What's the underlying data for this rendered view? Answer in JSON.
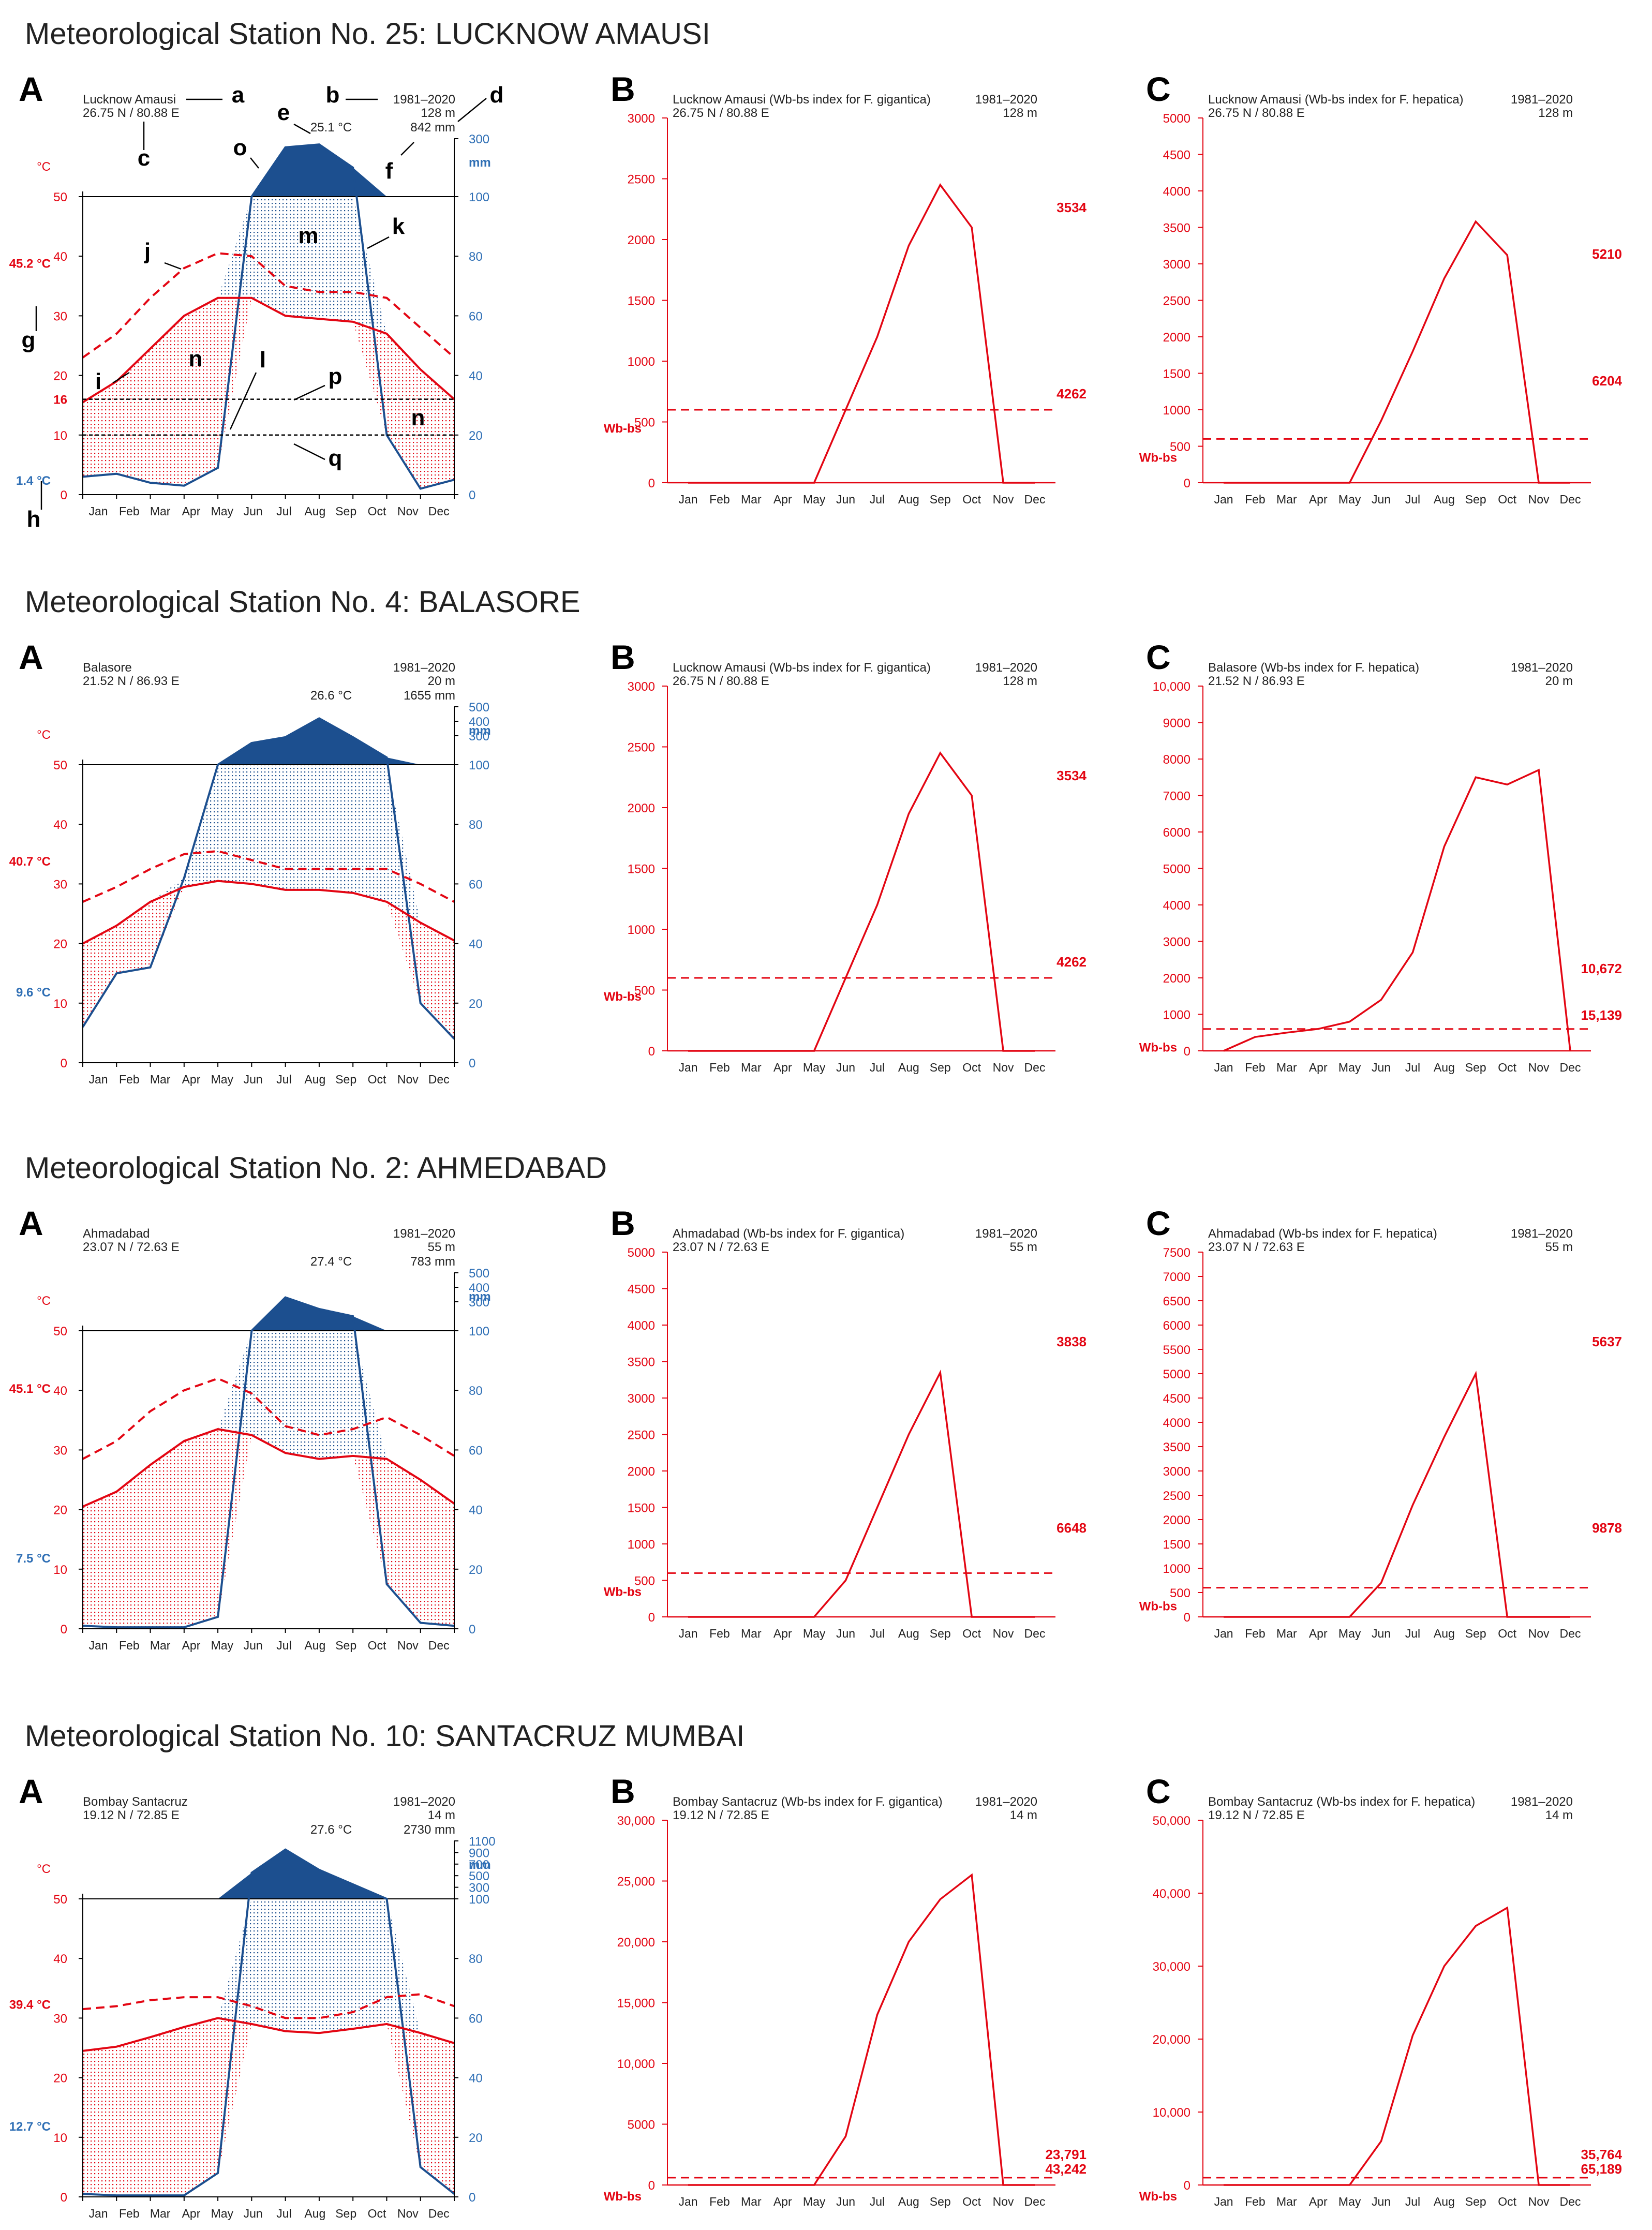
{
  "colors": {
    "temp": "#e30613",
    "prec": "#1c4f8f",
    "prec_label": "#2f6fb5",
    "axis": "#000000",
    "text": "#222222",
    "title": "#222222",
    "annot": "#000000"
  },
  "months": [
    "Jan",
    "Feb",
    "Mar",
    "Apr",
    "May",
    "Jun",
    "Jul",
    "Aug",
    "Sep",
    "Oct",
    "Nov",
    "Dec"
  ],
  "stations": [
    {
      "title": "Meteorological Station No. 25: LUCKNOW AMAUSI",
      "panels": {
        "A": {
          "letter": "A",
          "name": "Lucknow Amausi",
          "coords": "26.75 N / 80.88 E",
          "period": "1981–2020",
          "elevation": "128 m",
          "mean_temp": "25.1 °C",
          "annual_prec": "842 mm",
          "temp_unit": "°C",
          "prec_unit": "mm",
          "abs_max_label": "45.2 °C",
          "abs_min_label": "1.4 °C",
          "extra_temp_ticks": [
            "16"
          ],
          "ref_lines": [
            16,
            10
          ],
          "annotations": [
            "a",
            "b",
            "c",
            "d",
            "e",
            "f",
            "g",
            "h",
            "i",
            "j",
            "k",
            "l",
            "m",
            "n",
            "n",
            "o",
            "p",
            "q"
          ],
          "prec_ticks_high": [
            "300"
          ],
          "y_temp_ticks": [
            "0",
            "10",
            "20",
            "30",
            "40",
            "50"
          ],
          "y_prec_ticks": [
            "0",
            "20",
            "40",
            "60",
            "80",
            "100"
          ]
        },
        "B": {
          "letter": "B",
          "header": "Lucknow Amausi (Wb-bs index for F. gigantica)",
          "period": "1981–2020",
          "coords": "26.75 N / 80.88 E",
          "elevation": "128 m",
          "ylabel": "Wb-bs",
          "right_top": "3534",
          "right_bottom": "4262",
          "y_ticks": [
            "0",
            "500",
            "1000",
            "1500",
            "2000",
            "2500",
            "3000"
          ]
        },
        "C": {
          "letter": "C",
          "header": "Lucknow Amausi (Wb-bs index for F. hepatica)",
          "period": "1981–2020",
          "coords": "26.75 N / 80.88 E",
          "elevation": "128 m",
          "ylabel": "Wb-bs",
          "right_top": "5210",
          "right_bottom": "6204",
          "y_ticks": [
            "0",
            "500",
            "1000",
            "1500",
            "2000",
            "2500",
            "3000",
            "3500",
            "4000",
            "4500",
            "5000"
          ]
        }
      }
    },
    {
      "title": "Meteorological Station No. 4: BALASORE",
      "panels": {
        "A": {
          "letter": "A",
          "name": "Balasore",
          "coords": "21.52 N / 86.93 E",
          "period": "1981–2020",
          "elevation": "20 m",
          "mean_temp": "26.6 °C",
          "annual_prec": "1655 mm",
          "temp_unit": "°C",
          "prec_unit": "mm",
          "abs_max_label": "40.7 °C",
          "abs_min_label": "9.6 °C",
          "extra_temp_ticks": [],
          "ref_lines": [],
          "annotations": [],
          "prec_ticks_high": [
            "300",
            "400",
            "500"
          ],
          "y_temp_ticks": [
            "0",
            "10",
            "20",
            "30",
            "40",
            "50"
          ],
          "y_prec_ticks": [
            "0",
            "20",
            "40",
            "60",
            "80",
            "100"
          ]
        },
        "B": {
          "letter": "B",
          "header": "Lucknow Amausi (Wb-bs index for F. gigantica)",
          "period": "1981–2020",
          "coords": "26.75 N / 80.88 E",
          "elevation": "128 m",
          "ylabel": "Wb-bs",
          "right_top": "3534",
          "right_bottom": "4262",
          "y_ticks": [
            "0",
            "500",
            "1000",
            "1500",
            "2000",
            "2500",
            "3000"
          ]
        },
        "C": {
          "letter": "C",
          "header": "Balasore (Wb-bs index for F. hepatica)",
          "period": "1981–2020",
          "coords": "21.52 N / 86.93 E",
          "elevation": "20 m",
          "ylabel": "Wb-bs",
          "right_top": "10,672",
          "right_bottom": "15,139",
          "y_ticks": [
            "0",
            "1000",
            "2000",
            "3000",
            "4000",
            "5000",
            "6000",
            "7000",
            "8000",
            "9000",
            "10,000"
          ]
        }
      }
    },
    {
      "title": "Meteorological Station No. 2: AHMEDABAD",
      "panels": {
        "A": {
          "letter": "A",
          "name": "Ahmadabad",
          "coords": "23.07 N / 72.63 E",
          "period": "1981–2020",
          "elevation": "55 m",
          "mean_temp": "27.4 °C",
          "annual_prec": "783 mm",
          "temp_unit": "°C",
          "prec_unit": "mm",
          "abs_max_label": "45.1 °C",
          "abs_min_label": "7.5 °C",
          "extra_temp_ticks": [],
          "ref_lines": [],
          "annotations": [],
          "prec_ticks_high": [
            "300",
            "400",
            "500"
          ],
          "y_temp_ticks": [
            "0",
            "10",
            "20",
            "30",
            "40",
            "50"
          ],
          "y_prec_ticks": [
            "0",
            "20",
            "40",
            "60",
            "80",
            "100"
          ]
        },
        "B": {
          "letter": "B",
          "header": "Ahmadabad (Wb-bs index for F. gigantica)",
          "period": "1981–2020",
          "coords": "23.07 N / 72.63 E",
          "elevation": "55 m",
          "ylabel": "Wb-bs",
          "right_top": "3838",
          "right_bottom": "6648",
          "y_ticks": [
            "0",
            "500",
            "1000",
            "1500",
            "2000",
            "2500",
            "3000",
            "3500",
            "4000",
            "4500",
            "5000"
          ]
        },
        "C": {
          "letter": "C",
          "header": "Ahmadabad (Wb-bs index for F. hepatica)",
          "period": "1981–2020",
          "coords": "23.07 N / 72.63 E",
          "elevation": "55 m",
          "ylabel": "Wb-bs",
          "right_top": "5637",
          "right_bottom": "9878",
          "y_ticks": [
            "0",
            "500",
            "1000",
            "1500",
            "2000",
            "2500",
            "3000",
            "3500",
            "4000",
            "4500",
            "5000",
            "5500",
            "6000",
            "6500",
            "7000",
            "7500"
          ]
        }
      }
    },
    {
      "title": "Meteorological Station No. 10: SANTACRUZ MUMBAI",
      "panels": {
        "A": {
          "letter": "A",
          "name": "Bombay Santacruz",
          "coords": "19.12 N / 72.85 E",
          "period": "1981–2020",
          "elevation": "14 m",
          "mean_temp": "27.6 °C",
          "annual_prec": "2730 mm",
          "temp_unit": "°C",
          "prec_unit": "mm",
          "abs_max_label": "39.4 °C",
          "abs_min_label": "12.7 °C",
          "extra_temp_ticks": [],
          "ref_lines": [],
          "annotations": [],
          "prec_ticks_high": [
            "300",
            "500",
            "700",
            "900",
            "1100"
          ],
          "y_temp_ticks": [
            "0",
            "10",
            "20",
            "30",
            "40",
            "50"
          ],
          "y_prec_ticks": [
            "0",
            "20",
            "40",
            "60",
            "80",
            "100"
          ]
        },
        "B": {
          "letter": "B",
          "header": "Bombay Santacruz (Wb-bs index for F. gigantica)",
          "period": "1981–2020",
          "coords": "19.12 N / 72.85 E",
          "elevation": "14 m",
          "ylabel": "Wb-bs",
          "right_top": "23,791",
          "right_bottom": "43,242",
          "y_ticks": [
            "0",
            "5000",
            "10,000",
            "15,000",
            "20,000",
            "25,000",
            "30,000"
          ]
        },
        "C": {
          "letter": "C",
          "header": "Bombay Santacruz (Wb-bs index for F. hepatica)",
          "period": "1981–2020",
          "coords": "19.12 N / 72.85 E",
          "elevation": "14 m",
          "ylabel": "Wb-bs",
          "right_top": "35,764",
          "right_bottom": "65,189",
          "y_ticks": [
            "0",
            "10,000",
            "20,000",
            "30,000",
            "40,000",
            "50,000"
          ]
        }
      }
    }
  ],
  "chart_data": [
    {
      "type": "climate",
      "station": "Lucknow Amausi",
      "categories": [
        "Jan",
        "Feb",
        "Mar",
        "Apr",
        "May",
        "Jun",
        "Jul",
        "Aug",
        "Sep",
        "Oct",
        "Nov",
        "Dec"
      ],
      "series": [
        {
          "name": "mean temperature",
          "unit": "°C",
          "values": [
            15.5,
            19,
            24.5,
            30,
            33,
            33,
            30,
            29.5,
            29,
            27,
            21,
            16
          ]
        },
        {
          "name": "mean max temperature",
          "unit": "°C",
          "values": [
            23,
            27,
            33,
            38,
            40.5,
            40,
            35,
            34,
            34,
            33,
            28,
            23
          ]
        },
        {
          "name": "precipitation",
          "unit": "mm",
          "values": [
            6,
            7,
            4,
            3,
            9,
            100,
            270,
            280,
            200,
            20,
            2,
            5
          ]
        }
      ],
      "y_temp_range": [
        0,
        50
      ],
      "y_prec_range": [
        0,
        300
      ]
    },
    {
      "type": "line",
      "title": "Lucknow Amausi (Wb-bs index for F. gigantica)",
      "categories": [
        "Jan",
        "Feb",
        "Mar",
        "Apr",
        "May",
        "Jun",
        "Jul",
        "Aug",
        "Sep",
        "Oct",
        "Nov",
        "Dec"
      ],
      "values": [
        0,
        0,
        0,
        0,
        0,
        600,
        1200,
        1950,
        2450,
        2100,
        0,
        0
      ],
      "threshold": 600,
      "ylim": [
        0,
        3000
      ],
      "ylabel": "Wb-bs"
    },
    {
      "type": "line",
      "title": "Lucknow Amausi (Wb-bs index for F. hepatica)",
      "categories": [
        "Jan",
        "Feb",
        "Mar",
        "Apr",
        "May",
        "Jun",
        "Jul",
        "Aug",
        "Sep",
        "Oct",
        "Nov",
        "Dec"
      ],
      "values": [
        0,
        0,
        0,
        0,
        0,
        850,
        1800,
        2800,
        3580,
        3120,
        0,
        0
      ],
      "threshold": 600,
      "ylim": [
        0,
        5000
      ],
      "ylabel": "Wb-bs"
    },
    {
      "type": "climate",
      "station": "Balasore",
      "categories": [
        "Jan",
        "Feb",
        "Mar",
        "Apr",
        "May",
        "Jun",
        "Jul",
        "Aug",
        "Sep",
        "Oct",
        "Nov",
        "Dec"
      ],
      "series": [
        {
          "name": "mean temperature",
          "unit": "°C",
          "values": [
            20,
            23,
            27,
            29.5,
            30.5,
            30,
            29,
            29,
            28.5,
            27,
            23.5,
            20.5
          ]
        },
        {
          "name": "mean max temperature",
          "unit": "°C",
          "values": [
            27,
            29.5,
            32.5,
            35,
            35.5,
            34,
            32.5,
            32.5,
            32.5,
            32.5,
            30,
            27
          ]
        },
        {
          "name": "precipitation",
          "unit": "mm",
          "values": [
            12,
            30,
            32,
            62,
            100,
            250,
            290,
            420,
            290,
            150,
            20,
            8
          ]
        }
      ],
      "y_temp_range": [
        0,
        50
      ],
      "y_prec_range": [
        0,
        500
      ]
    },
    {
      "type": "line",
      "title": "Lucknow Amausi (Wb-bs index for F. gigantica)",
      "categories": [
        "Jan",
        "Feb",
        "Mar",
        "Apr",
        "May",
        "Jun",
        "Jul",
        "Aug",
        "Sep",
        "Oct",
        "Nov",
        "Dec"
      ],
      "values": [
        0,
        0,
        0,
        0,
        0,
        600,
        1200,
        1950,
        2450,
        2100,
        0,
        0
      ],
      "threshold": 600,
      "ylim": [
        0,
        3000
      ],
      "ylabel": "Wb-bs"
    },
    {
      "type": "line",
      "title": "Balasore (Wb-bs index for F. hepatica)",
      "categories": [
        "Jan",
        "Feb",
        "Mar",
        "Apr",
        "May",
        "Jun",
        "Jul",
        "Aug",
        "Sep",
        "Oct",
        "Nov",
        "Dec"
      ],
      "values": [
        0,
        380,
        500,
        600,
        800,
        1400,
        2700,
        5600,
        7500,
        7300,
        7700,
        0
      ],
      "threshold": 600,
      "ylim": [
        0,
        10000
      ],
      "ylabel": "Wb-bs"
    },
    {
      "type": "climate",
      "station": "Ahmadabad",
      "categories": [
        "Jan",
        "Feb",
        "Mar",
        "Apr",
        "May",
        "Jun",
        "Jul",
        "Aug",
        "Sep",
        "Oct",
        "Nov",
        "Dec"
      ],
      "series": [
        {
          "name": "mean temperature",
          "unit": "°C",
          "values": [
            20.5,
            23,
            27.5,
            31.5,
            33.5,
            32.5,
            29.5,
            28.5,
            29,
            28.5,
            25,
            21
          ]
        },
        {
          "name": "mean max temperature",
          "unit": "°C",
          "values": [
            28.5,
            31.5,
            36.5,
            40,
            42,
            39.5,
            34,
            32.5,
            33.5,
            35.5,
            32.5,
            29
          ]
        },
        {
          "name": "precipitation",
          "unit": "mm",
          "values": [
            1,
            0.5,
            0.5,
            0.5,
            4,
            100,
            330,
            250,
            200,
            15,
            2,
            1
          ]
        }
      ],
      "y_temp_range": [
        0,
        50
      ],
      "y_prec_range": [
        0,
        500
      ]
    },
    {
      "type": "line",
      "title": "Ahmadabad (Wb-bs index for F. gigantica)",
      "categories": [
        "Jan",
        "Feb",
        "Mar",
        "Apr",
        "May",
        "Jun",
        "Jul",
        "Aug",
        "Sep",
        "Oct",
        "Nov",
        "Dec"
      ],
      "values": [
        0,
        0,
        0,
        0,
        0,
        500,
        1500,
        2500,
        3350,
        0,
        0,
        0
      ],
      "threshold": 600,
      "ylim": [
        0,
        5000
      ],
      "ylabel": "Wb-bs"
    },
    {
      "type": "line",
      "title": "Ahmadabad (Wb-bs index for F. hepatica)",
      "categories": [
        "Jan",
        "Feb",
        "Mar",
        "Apr",
        "May",
        "Jun",
        "Jul",
        "Aug",
        "Sep",
        "Oct",
        "Nov",
        "Dec"
      ],
      "values": [
        0,
        0,
        0,
        0,
        0,
        700,
        2300,
        3700,
        5000,
        0,
        0,
        0
      ],
      "threshold": 600,
      "ylim": [
        0,
        7500
      ],
      "ylabel": "Wb-bs"
    },
    {
      "type": "climate",
      "station": "Bombay Santacruz",
      "categories": [
        "Jan",
        "Feb",
        "Mar",
        "Apr",
        "May",
        "Jun",
        "Jul",
        "Aug",
        "Sep",
        "Oct",
        "Nov",
        "Dec"
      ],
      "series": [
        {
          "name": "mean temperature",
          "unit": "°C",
          "values": [
            24.5,
            25.2,
            26.8,
            28.5,
            30,
            29,
            27.8,
            27.5,
            28.2,
            29,
            27.5,
            25.8
          ]
        },
        {
          "name": "mean max temperature",
          "unit": "°C",
          "values": [
            31.5,
            32,
            33,
            33.5,
            33.5,
            32,
            30,
            30,
            31,
            33.5,
            34,
            32
          ]
        },
        {
          "name": "precipitation",
          "unit": "mm",
          "values": [
            1,
            0.5,
            0.5,
            0.5,
            8,
            550,
            950,
            600,
            350,
            100,
            10,
            1
          ]
        }
      ],
      "y_temp_range": [
        0,
        50
      ],
      "y_prec_range": [
        0,
        1100
      ]
    },
    {
      "type": "line",
      "title": "Bombay Santacruz (Wb-bs index for F. gigantica)",
      "categories": [
        "Jan",
        "Feb",
        "Mar",
        "Apr",
        "May",
        "Jun",
        "Jul",
        "Aug",
        "Sep",
        "Oct",
        "Nov",
        "Dec"
      ],
      "values": [
        0,
        0,
        0,
        0,
        0,
        4000,
        14000,
        20000,
        23500,
        25500,
        0,
        0
      ],
      "threshold": 600,
      "ylim": [
        0,
        30000
      ],
      "ylabel": "Wb-bs"
    },
    {
      "type": "line",
      "title": "Bombay Santacruz (Wb-bs index for F. hepatica)",
      "categories": [
        "Jan",
        "Feb",
        "Mar",
        "Apr",
        "May",
        "Jun",
        "Jul",
        "Aug",
        "Sep",
        "Oct",
        "Nov",
        "Dec"
      ],
      "values": [
        0,
        0,
        0,
        0,
        0,
        6000,
        20500,
        30000,
        35500,
        38000,
        0,
        0
      ],
      "threshold": 1000,
      "ylim": [
        0,
        50000
      ],
      "ylabel": "Wb-bs"
    }
  ]
}
